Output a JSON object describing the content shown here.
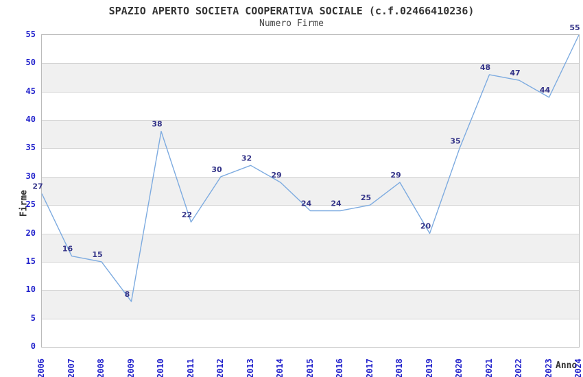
{
  "title": "SPAZIO APERTO SOCIETA COOPERATIVA SOCIALE (c.f.02466410236)",
  "subtitle": "Numero Firme",
  "chart_data": {
    "type": "line",
    "x": [
      "2006",
      "2007",
      "2008",
      "2009",
      "2010",
      "2011",
      "2012",
      "2013",
      "2014",
      "2015",
      "2016",
      "2017",
      "2018",
      "2019",
      "2020",
      "2021",
      "2022",
      "2023",
      "2024"
    ],
    "values": [
      27,
      16,
      15,
      8,
      38,
      22,
      30,
      32,
      29,
      24,
      24,
      25,
      29,
      20,
      35,
      48,
      47,
      44,
      55
    ],
    "title": "SPAZIO APERTO SOCIETA COOPERATIVA SOCIALE (c.f.02466410236)",
    "subtitle": "Numero Firme",
    "xlabel": "Anno",
    "ylabel": "Firme",
    "ylim": [
      0,
      55
    ],
    "yticks": [
      0,
      5,
      10,
      15,
      20,
      25,
      30,
      35,
      40,
      45,
      50,
      55
    ],
    "grid": "horizontal-alternating-bands",
    "legend": "none",
    "data_labels_shown": true,
    "colors": {
      "line": "#7dabe0",
      "axis_tick_label": "#2222cc",
      "point_label": "#333388",
      "band": "#f0f0f0",
      "grid_line": "#d4d4d4",
      "plot_border": "#bbbbbb",
      "title_text": "#333333"
    }
  }
}
